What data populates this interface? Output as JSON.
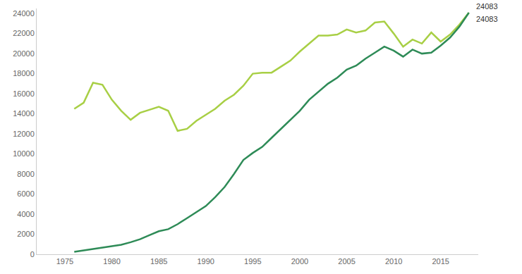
{
  "chart_data": {
    "type": "line",
    "x": [
      1976,
      1977,
      1978,
      1979,
      1980,
      1981,
      1982,
      1983,
      1984,
      1985,
      1986,
      1987,
      1988,
      1989,
      1990,
      1991,
      1992,
      1993,
      1994,
      1995,
      1996,
      1997,
      1998,
      1999,
      2000,
      2001,
      2002,
      2003,
      2004,
      2005,
      2006,
      2007,
      2008,
      2009,
      2010,
      2011,
      2012,
      2013,
      2014,
      2015,
      2016,
      2017,
      2018
    ],
    "series": [
      {
        "color": "#a8cf45",
        "values": [
          14500,
          15100,
          17100,
          16900,
          15400,
          14300,
          13400,
          14100,
          14400,
          14700,
          14300,
          12300,
          12500,
          13300,
          13900,
          14500,
          15300,
          15900,
          16800,
          18000,
          18100,
          18100,
          18700,
          19300,
          20200,
          21000,
          21800,
          21800,
          21900,
          22400,
          22100,
          22300,
          23100,
          23200,
          22000,
          20700,
          21400,
          21000,
          22100,
          21200,
          21900,
          22900,
          24083
        ]
      },
      {
        "color": "#2e8b57",
        "values": [
          250,
          400,
          550,
          700,
          800,
          950,
          1200,
          1500,
          1900,
          2300,
          2500,
          3000,
          3600,
          4200,
          4800,
          5700,
          6700,
          8000,
          9400,
          10100,
          10700,
          11600,
          12500,
          13400,
          14300,
          15400,
          16200,
          17000,
          17600,
          18400,
          18800,
          19500,
          20100,
          20700,
          20300,
          19700,
          20400,
          20000,
          20100,
          20800,
          21600,
          22700,
          24083
        ]
      }
    ],
    "annotations": [
      "24083",
      "24083"
    ],
    "xlim": [
      1972,
      2019
    ],
    "xticks": [
      1975,
      1980,
      1985,
      1990,
      1995,
      2000,
      2005,
      2010,
      2015
    ],
    "ylim": [
      0,
      24500
    ],
    "yticks": [
      0,
      2000,
      4000,
      6000,
      8000,
      10000,
      12000,
      14000,
      16000,
      18000,
      20000,
      22000,
      24000
    ],
    "grid": false
  }
}
